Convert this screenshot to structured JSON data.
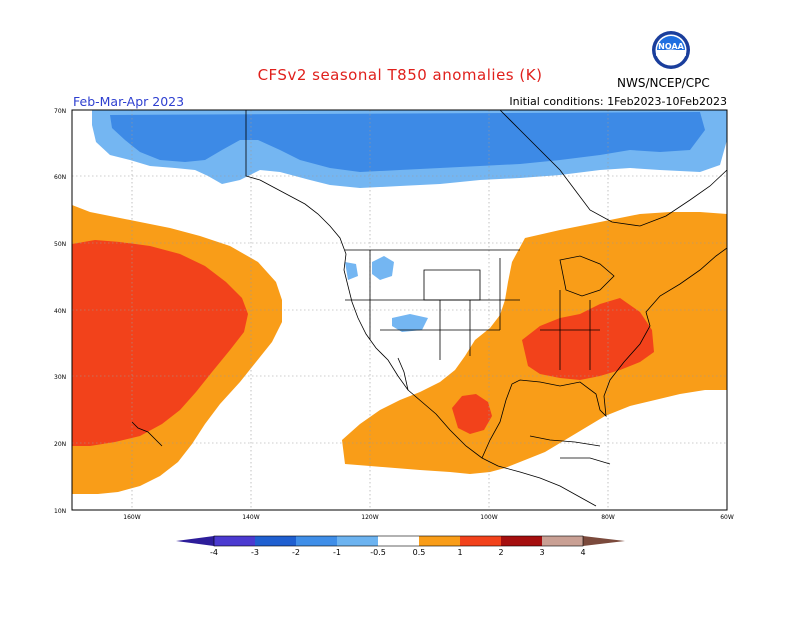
{
  "title": "CFSv2 seasonal T850 anomalies (K)",
  "period": "Feb-Mar-Apr 2023",
  "initial_conditions": "Initial conditions: 1Feb2023-10Feb2023",
  "agency": "NWS/NCEP/CPC",
  "logo_text": "NOAA",
  "map": {
    "lat_labels": [
      "70N",
      "60N",
      "50N",
      "40N",
      "30N",
      "20N",
      "10N"
    ],
    "lon_labels": [
      "160W",
      "140W",
      "120W",
      "100W",
      "80W",
      "60W"
    ],
    "regions": [
      {
        "name": "arctic-cold-anomaly",
        "sign": "negative",
        "level": "-1 to -0.5"
      },
      {
        "name": "arctic-cold-core",
        "sign": "negative",
        "level": "-2 to -1"
      },
      {
        "name": "pacific-warm-anomaly",
        "sign": "positive",
        "level": "0.5 to 1"
      },
      {
        "name": "pacific-warm-core",
        "sign": "positive",
        "level": "1 to 2"
      },
      {
        "name": "eastern-us-warm-anomaly",
        "sign": "positive",
        "level": "0.5 to 1"
      },
      {
        "name": "southeast-us-warm-core",
        "sign": "positive",
        "level": "1 to 2"
      },
      {
        "name": "mexico-warm-core",
        "sign": "positive",
        "level": "1 to 2"
      },
      {
        "name": "western-us-cold-patches",
        "sign": "negative",
        "level": "-1 to -0.5"
      }
    ]
  },
  "colorbar": {
    "labels": [
      "-4",
      "-3",
      "-2",
      "-1",
      "-0.5",
      "0.5",
      "1",
      "2",
      "3",
      "4"
    ],
    "colors": [
      "#2d1d9a",
      "#4b3ad0",
      "#1f5fd0",
      "#3f8ee8",
      "#6cb3f0",
      "#ffffff",
      "#f99d18",
      "#f2421b",
      "#a50f0f",
      "#c9a094",
      "#7b4a3c"
    ]
  }
}
